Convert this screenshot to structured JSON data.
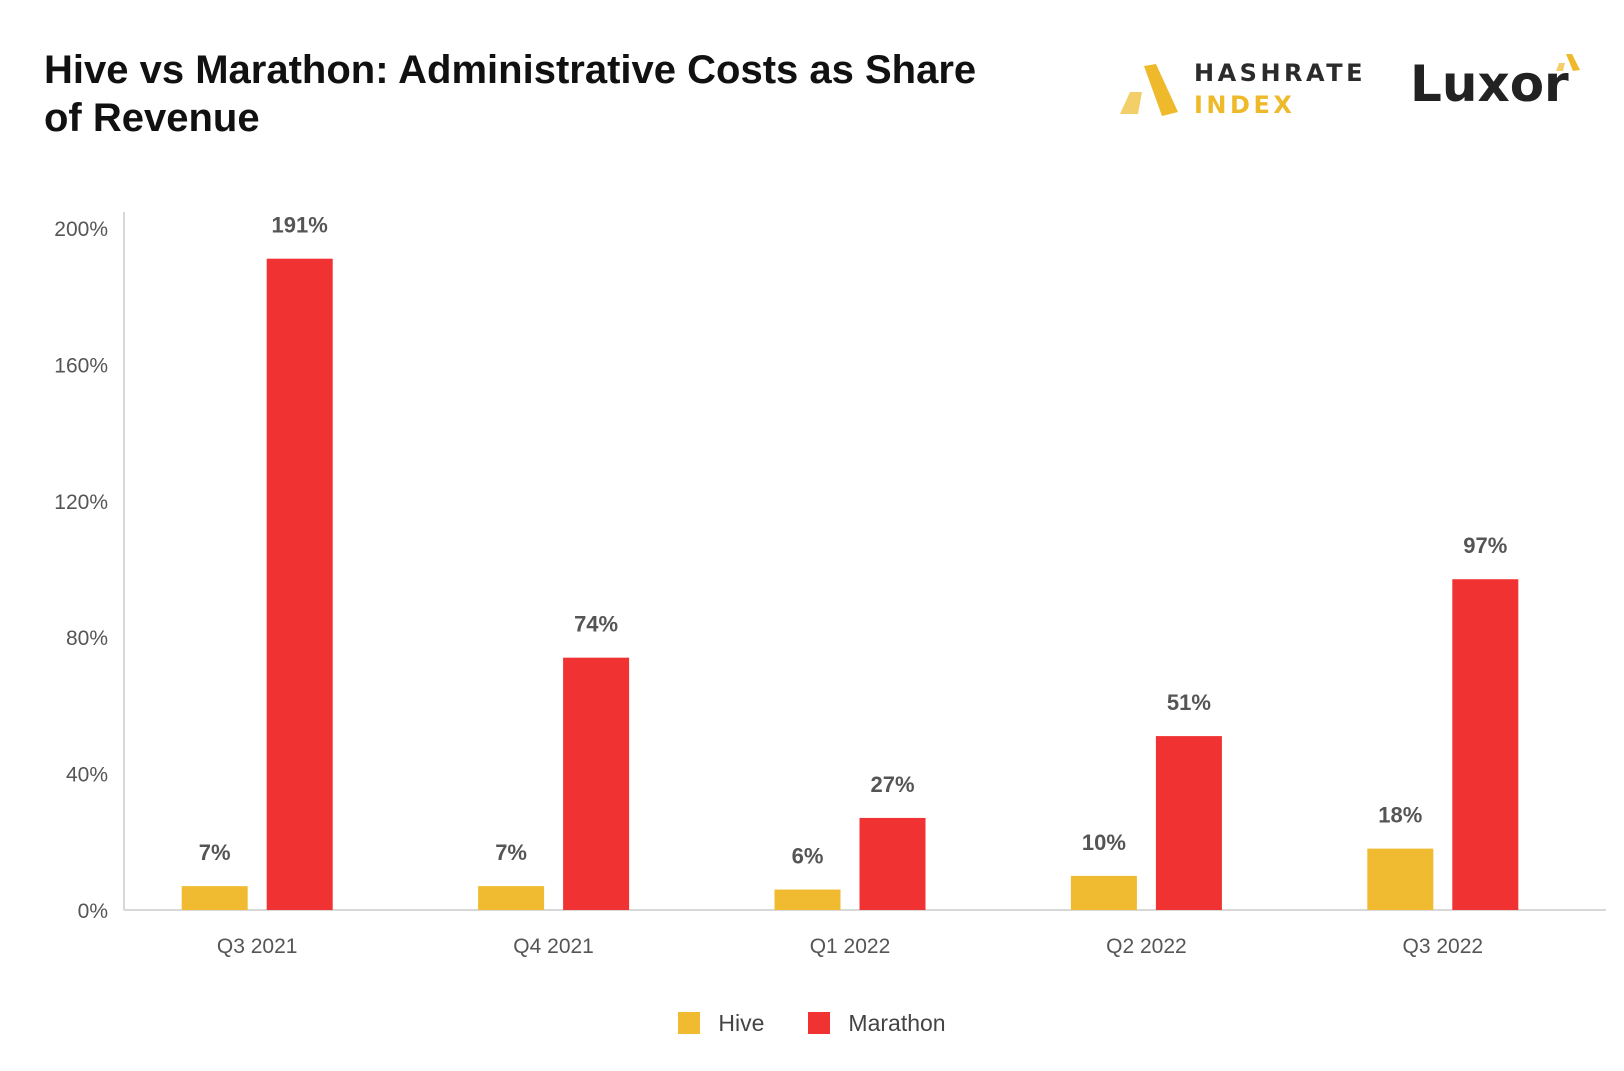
{
  "header": {
    "title": "Hive vs Marathon: Administrative Costs as Share of Revenue"
  },
  "logos": {
    "hashrate_line1": "HASHRATE",
    "hashrate_line2": "INDEX",
    "luxor": "Luxor"
  },
  "colors": {
    "hive": "#f0bb30",
    "marathon": "#f03232",
    "axis": "#cccccc",
    "tick_text": "#555555",
    "label_text": "#555555"
  },
  "chart_data": {
    "type": "bar",
    "title": "Hive vs Marathon: Administrative Costs as Share of Revenue",
    "xlabel": "",
    "ylabel": "",
    "categories": [
      "Q3 2021",
      "Q4 2021",
      "Q1 2022",
      "Q2 2022",
      "Q3 2022"
    ],
    "series": [
      {
        "name": "Hive",
        "values": [
          7,
          7,
          6,
          10,
          18
        ],
        "labels": [
          "7%",
          "7%",
          "6%",
          "10%",
          "18%"
        ]
      },
      {
        "name": "Marathon",
        "values": [
          191,
          74,
          27,
          51,
          97
        ],
        "labels": [
          "191%",
          "74%",
          "27%",
          "51%",
          "97%"
        ]
      }
    ],
    "ylim": [
      0,
      200
    ],
    "yticks": [
      0,
      40,
      80,
      120,
      160,
      200
    ],
    "ytick_labels": [
      "0%",
      "40%",
      "80%",
      "120%",
      "160%",
      "200%"
    ],
    "grid": false,
    "legend_position": "bottom-center"
  }
}
